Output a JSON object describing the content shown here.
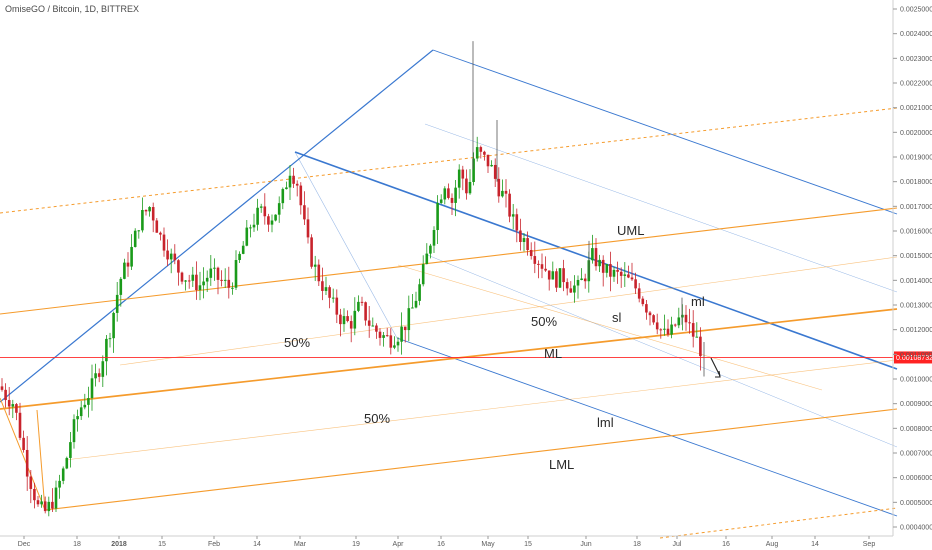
{
  "header": {
    "title": "OmiseGO / Bitcoin, 1D, BITTREX"
  },
  "colors": {
    "up": "#1a9a1a",
    "down": "#c8232c",
    "blue": "#3a78d0",
    "orange": "#f59b2c",
    "priceLine": "#ff2222",
    "grid": "#e8e8e8",
    "axisText": "#5a5a5a"
  },
  "chart_data": {
    "type": "candlestick",
    "title": "OmiseGO / Bitcoin, 1D, BITTREX",
    "x_ticks": [
      "Dec",
      "18",
      "2018",
      "15",
      "Feb",
      "14",
      "Mar",
      "19",
      "Apr",
      "16",
      "May",
      "15",
      "Jun",
      "18",
      "Jul",
      "16",
      "Aug",
      "14",
      "Sep"
    ],
    "y_ticks": [
      "0.00250000",
      "0.00240000",
      "0.00230000",
      "0.00220000",
      "0.00210000",
      "0.00200000",
      "0.00190000",
      "0.00180000",
      "0.00170000",
      "0.00160000",
      "0.00150000",
      "0.00140000",
      "0.00130000",
      "0.00120000",
      "0.00110000",
      "0.00100000",
      "0.00090000",
      "0.00080000",
      "0.00070000",
      "0.00060000",
      "0.00050000",
      "0.00040000"
    ],
    "ylim": [
      0.00037,
      0.00255
    ],
    "last_price": "0.00108732",
    "last_price_value": 0.00108732,
    "annotations": [
      "UML",
      "ML",
      "LML",
      "sl",
      "ml",
      "lml",
      "50%",
      "50%",
      "50%"
    ],
    "price_path": [
      [
        0,
        0.00097
      ],
      [
        6,
        0.00093
      ],
      [
        14,
        0.0009
      ],
      [
        28,
        0.00062
      ],
      [
        38,
        0.00048
      ],
      [
        45,
        0.00046
      ],
      [
        55,
        0.00052
      ],
      [
        65,
        0.00065
      ],
      [
        72,
        0.00078
      ],
      [
        80,
        0.00088
      ],
      [
        90,
        0.00095
      ],
      [
        100,
        0.00105
      ],
      [
        110,
        0.0012
      ],
      [
        120,
        0.0014
      ],
      [
        130,
        0.0015
      ],
      [
        140,
        0.00165
      ],
      [
        150,
        0.0017
      ],
      [
        160,
        0.00158
      ],
      [
        170,
        0.0015
      ],
      [
        180,
        0.00143
      ],
      [
        190,
        0.0014
      ],
      [
        200,
        0.00138
      ],
      [
        210,
        0.00143
      ],
      [
        220,
        0.0014
      ],
      [
        230,
        0.00137
      ],
      [
        240,
        0.0015
      ],
      [
        250,
        0.00162
      ],
      [
        260,
        0.00168
      ],
      [
        270,
        0.00165
      ],
      [
        280,
        0.0017
      ],
      [
        290,
        0.00185
      ],
      [
        297,
        0.0018
      ],
      [
        303,
        0.00165
      ],
      [
        310,
        0.0015
      ],
      [
        320,
        0.0014
      ],
      [
        330,
        0.00132
      ],
      [
        340,
        0.00125
      ],
      [
        350,
        0.00122
      ],
      [
        360,
        0.0013
      ],
      [
        370,
        0.00122
      ],
      [
        380,
        0.00118
      ],
      [
        390,
        0.00116
      ],
      [
        398,
        0.00118
      ],
      [
        405,
        0.00122
      ],
      [
        412,
        0.00128
      ],
      [
        420,
        0.00138
      ],
      [
        430,
        0.00155
      ],
      [
        438,
        0.00172
      ],
      [
        445,
        0.0018
      ],
      [
        452,
        0.00172
      ],
      [
        460,
        0.00185
      ],
      [
        468,
        0.00175
      ],
      [
        475,
        0.00193
      ],
      [
        482,
        0.0019
      ],
      [
        490,
        0.00187
      ],
      [
        498,
        0.00178
      ],
      [
        505,
        0.00173
      ],
      [
        512,
        0.00165
      ],
      [
        520,
        0.00158
      ],
      [
        528,
        0.00155
      ],
      [
        535,
        0.0015
      ],
      [
        545,
        0.00145
      ],
      [
        555,
        0.0014
      ],
      [
        562,
        0.00142
      ],
      [
        570,
        0.00138
      ],
      [
        578,
        0.00137
      ],
      [
        585,
        0.00142
      ],
      [
        592,
        0.0015
      ],
      [
        600,
        0.00146
      ],
      [
        608,
        0.00143
      ],
      [
        618,
        0.00142
      ],
      [
        628,
        0.0014
      ],
      [
        638,
        0.00136
      ],
      [
        648,
        0.00128
      ],
      [
        656,
        0.00124
      ],
      [
        663,
        0.00118
      ],
      [
        670,
        0.00118
      ],
      [
        678,
        0.00124
      ],
      [
        686,
        0.00124
      ],
      [
        693,
        0.00118
      ],
      [
        698,
        0.00115
      ],
      [
        703,
        0.00109
      ]
    ]
  }
}
